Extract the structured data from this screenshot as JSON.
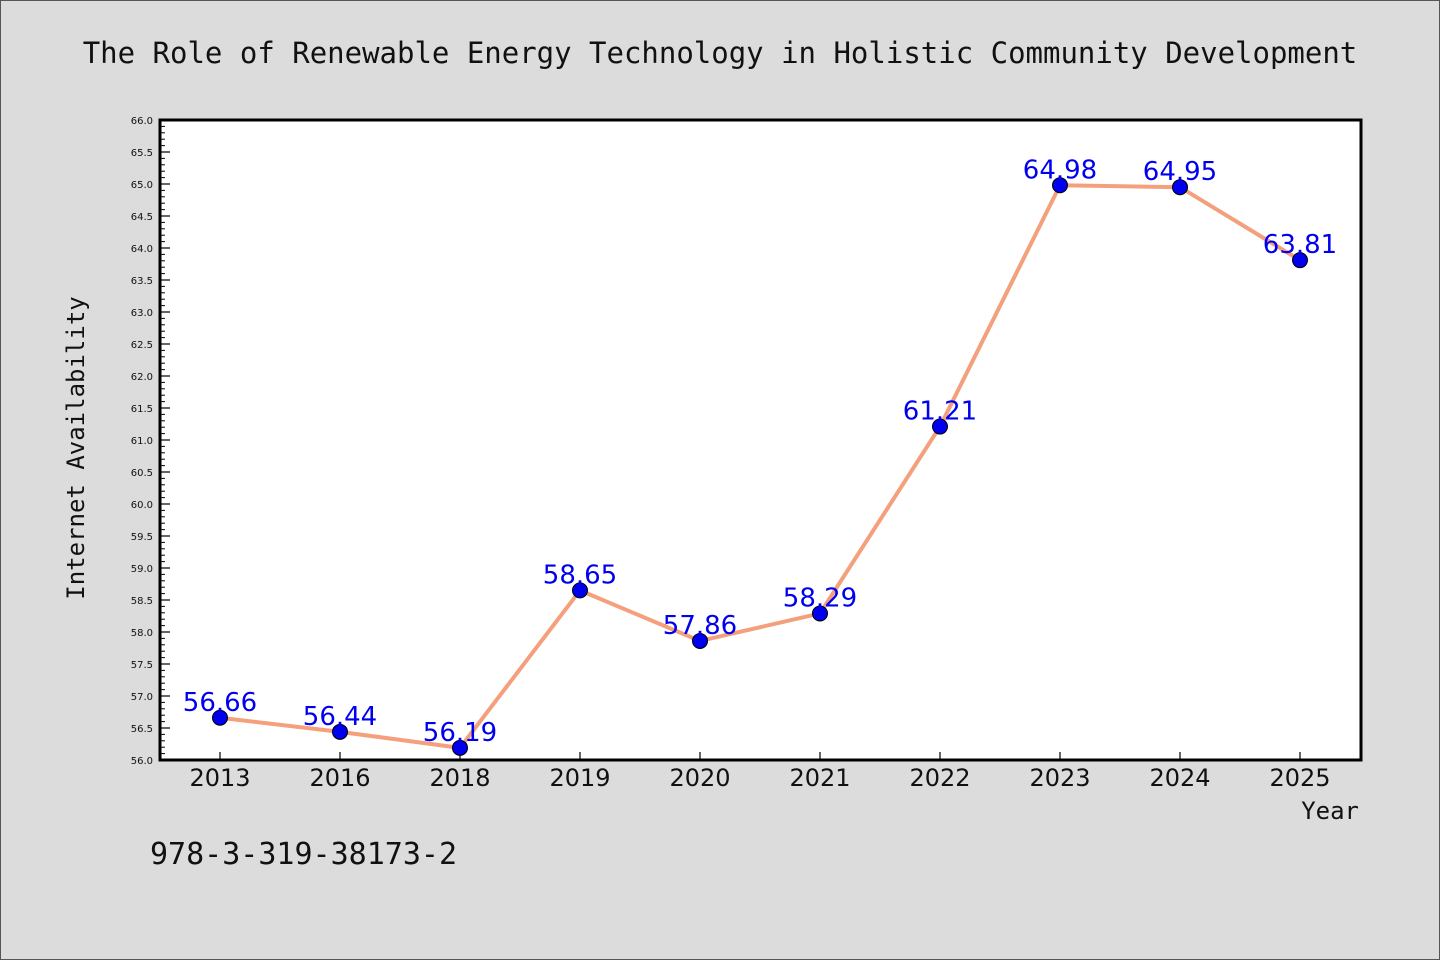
{
  "chart_data": {
    "type": "line",
    "title": "The Role of Renewable Energy Technology in Holistic Community Development",
    "xlabel": "Year",
    "ylabel": "Internet Availability",
    "categories": [
      "2013",
      "2016",
      "2018",
      "2019",
      "2020",
      "2021",
      "2022",
      "2023",
      "2024",
      "2025"
    ],
    "series": [
      {
        "values": [
          56.66,
          56.44,
          56.19,
          58.65,
          57.86,
          58.29,
          61.21,
          64.98,
          64.95,
          63.81
        ]
      }
    ],
    "data_labels": [
      "56.66",
      "56.44",
      "56.19",
      "58.65",
      "57.86",
      "58.29",
      "61.21",
      "64.98",
      "64.95",
      "63.81"
    ],
    "ylim": [
      56.0,
      66.0
    ],
    "y_ticks": [
      "56.0",
      "56.5",
      "57.0",
      "57.5",
      "58.0",
      "58.5",
      "59.0",
      "59.5",
      "60.0",
      "60.5",
      "61.0",
      "61.5",
      "62.0",
      "62.5",
      "63.0",
      "63.5",
      "64.0",
      "64.5",
      "65.0",
      "65.5",
      "66.0"
    ],
    "grid": false,
    "line_color": "#f4a07c",
    "marker_color": "#0000ee",
    "label_color": "#0000ee"
  },
  "annotation": "978-3-319-38173-2"
}
